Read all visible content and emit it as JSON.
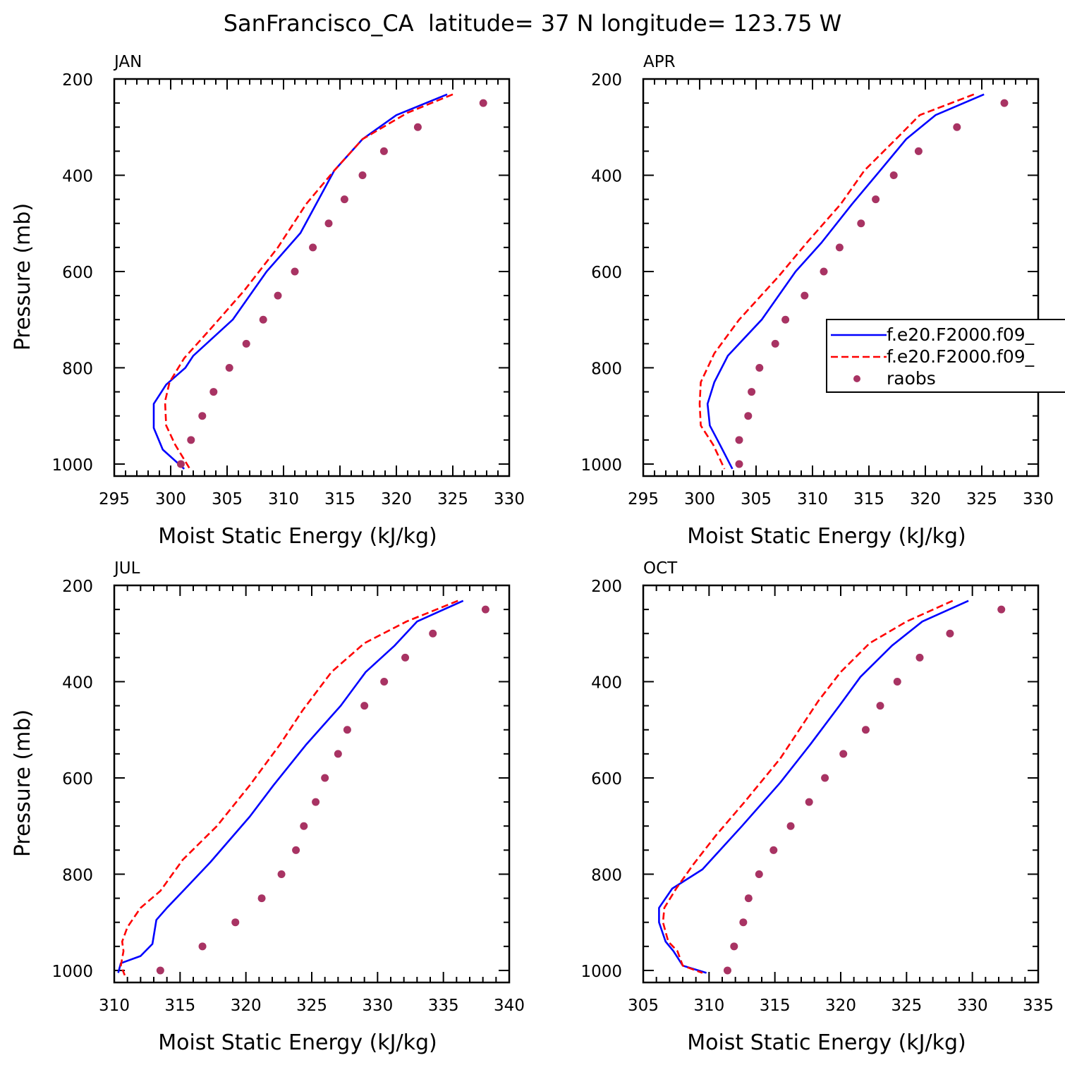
{
  "figure": {
    "title": "SanFrancisco_CA  latitude= 37 N longitude= 123.75 W"
  },
  "legend": {
    "entries": [
      {
        "label": "f.e20.F2000.f09_",
        "style": "solid",
        "color": "#0000ff"
      },
      {
        "label": "f.e20.F2000.f09_",
        "style": "dashed",
        "color": "#ff0000"
      },
      {
        "label": "raobs",
        "style": "dot",
        "color": "#a83363"
      }
    ]
  },
  "colors": {
    "series_solid": "#0000ff",
    "series_dashed": "#ff0000",
    "raobs": "#a83363",
    "frame": "#000000"
  },
  "chart_data": [
    {
      "type": "line",
      "panel_label": "JAN",
      "xlabel": "Moist Static Energy (kJ/kg)",
      "ylabel": "Pressure (mb)",
      "xlim": [
        295,
        330
      ],
      "ylim": [
        200,
        1025
      ],
      "y_inverted": true,
      "xticks": [
        295,
        300,
        305,
        310,
        315,
        320,
        325,
        330
      ],
      "yticks": [
        200,
        400,
        600,
        800,
        1000
      ],
      "series": [
        {
          "style": "solid",
          "x": [
            324.5,
            320,
            317,
            314.5,
            311.5,
            308.5,
            305.5,
            302,
            301.3,
            299.6,
            298.5,
            298.5,
            299.3,
            301.2
          ],
          "y": [
            232,
            275,
            325,
            390,
            520,
            600,
            700,
            775,
            800,
            835,
            875,
            925,
            970,
            1010
          ]
        },
        {
          "style": "dashed",
          "x": [
            325,
            321,
            317,
            314.5,
            312,
            309.5,
            306.5,
            303.5,
            301.2,
            299.9,
            299.5,
            299.6,
            300.4,
            301.7
          ],
          "y": [
            232,
            270,
            325,
            390,
            460,
            550,
            640,
            720,
            780,
            830,
            870,
            920,
            960,
            1010
          ]
        },
        {
          "style": "dot",
          "x": [
            327.7,
            321.9,
            318.9,
            317,
            315.4,
            314,
            312.6,
            311,
            309.5,
            308.2,
            306.7,
            305.2,
            303.8,
            302.8,
            301.8,
            300.9
          ],
          "y": [
            250,
            300,
            350,
            400,
            450,
            500,
            550,
            600,
            650,
            700,
            750,
            800,
            850,
            900,
            950,
            1000
          ]
        }
      ]
    },
    {
      "type": "line",
      "panel_label": "APR",
      "xlabel": "Moist Static Energy (kJ/kg)",
      "ylabel": "",
      "xlim": [
        295,
        330
      ],
      "ylim": [
        200,
        1025
      ],
      "y_inverted": true,
      "xticks": [
        295,
        300,
        305,
        310,
        315,
        320,
        325,
        330
      ],
      "yticks": [
        200,
        400,
        600,
        800,
        1000
      ],
      "series": [
        {
          "style": "solid",
          "x": [
            325.2,
            320.9,
            318.3,
            316,
            313.5,
            310.8,
            308.5,
            305.5,
            302.5,
            301.3,
            300.7,
            300.9,
            301.8,
            302.9
          ],
          "y": [
            232,
            275,
            325,
            390,
            460,
            540,
            600,
            700,
            775,
            830,
            875,
            920,
            960,
            1010
          ]
        },
        {
          "style": "dashed",
          "x": [
            324.3,
            319.5,
            317.6,
            314.6,
            312.5,
            309.5,
            307,
            303.5,
            301.3,
            300.1,
            300,
            300.1,
            301.2,
            302.2
          ],
          "y": [
            232,
            275,
            320,
            390,
            460,
            540,
            610,
            700,
            770,
            830,
            875,
            920,
            960,
            1010
          ]
        },
        {
          "style": "dot",
          "x": [
            327,
            322.8,
            319.4,
            317.2,
            315.6,
            314.3,
            312.4,
            311,
            309.3,
            307.6,
            306.7,
            305.3,
            304.6,
            304.3,
            303.5,
            303.5
          ],
          "y": [
            250,
            300,
            350,
            400,
            450,
            500,
            550,
            600,
            650,
            700,
            750,
            800,
            850,
            900,
            950,
            1000
          ]
        }
      ]
    },
    {
      "type": "line",
      "panel_label": "JUL",
      "xlabel": "Moist Static Energy (kJ/kg)",
      "ylabel": "Pressure (mb)",
      "xlim": [
        310,
        340
      ],
      "ylim": [
        200,
        1025
      ],
      "y_inverted": true,
      "xticks": [
        310,
        315,
        320,
        325,
        330,
        335,
        340
      ],
      "yticks": [
        200,
        400,
        600,
        800,
        1000
      ],
      "series": [
        {
          "style": "solid",
          "x": [
            336.5,
            333,
            331.3,
            329.1,
            327.2,
            324.6,
            322.1,
            320.3,
            317.3,
            315.4,
            314,
            313.2,
            312.9,
            312,
            310.5,
            310.3
          ],
          "y": [
            232,
            275,
            325,
            380,
            450,
            530,
            615,
            680,
            775,
            830,
            870,
            895,
            945,
            970,
            985,
            1005
          ]
        },
        {
          "style": "dashed",
          "x": [
            336.1,
            332.2,
            329,
            326.5,
            324.3,
            322.6,
            320.3,
            317.8,
            315.2,
            313.5,
            312,
            311,
            310.6,
            310.7,
            310.5,
            310.8
          ],
          "y": [
            232,
            275,
            320,
            380,
            460,
            530,
            615,
            700,
            770,
            835,
            870,
            910,
            940,
            960,
            990,
            1010
          ]
        },
        {
          "style": "dot",
          "x": [
            338.2,
            334.2,
            332.1,
            330.5,
            329,
            327.7,
            327,
            326,
            325.3,
            324.4,
            323.8,
            322.7,
            321.2,
            319.2,
            316.7,
            313.5
          ],
          "y": [
            250,
            300,
            350,
            400,
            450,
            500,
            550,
            600,
            650,
            700,
            750,
            800,
            850,
            900,
            950,
            1000
          ]
        }
      ]
    },
    {
      "type": "line",
      "panel_label": "OCT",
      "xlabel": "Moist Static Energy (kJ/kg)",
      "ylabel": "",
      "xlim": [
        305,
        335
      ],
      "ylim": [
        200,
        1025
      ],
      "y_inverted": true,
      "xticks": [
        305,
        310,
        315,
        320,
        325,
        330,
        335
      ],
      "yticks": [
        200,
        400,
        600,
        800,
        1000
      ],
      "series": [
        {
          "style": "solid",
          "x": [
            329.7,
            326.2,
            323.9,
            321.5,
            319.9,
            317.7,
            315.4,
            312.5,
            309.5,
            307.2,
            306.2,
            306.2,
            306.7,
            307.3,
            308,
            309.8
          ],
          "y": [
            232,
            275,
            325,
            390,
            450,
            530,
            610,
            700,
            790,
            830,
            870,
            900,
            940,
            960,
            990,
            1005
          ]
        },
        {
          "style": "dashed",
          "x": [
            328.5,
            325,
            322.2,
            320,
            318.3,
            315.4,
            312.7,
            310.5,
            308.8,
            307.5,
            306.6,
            306.5,
            306.9,
            307.6,
            308,
            309.5
          ],
          "y": [
            232,
            275,
            320,
            380,
            440,
            560,
            650,
            720,
            780,
            830,
            870,
            900,
            940,
            960,
            990,
            1005
          ]
        },
        {
          "style": "dot",
          "x": [
            332.2,
            328.3,
            326,
            324.3,
            323,
            321.9,
            320.2,
            318.8,
            317.6,
            316.2,
            314.9,
            313.8,
            313,
            312.6,
            311.9,
            311.4
          ],
          "y": [
            250,
            300,
            350,
            400,
            450,
            500,
            550,
            600,
            650,
            700,
            750,
            800,
            850,
            900,
            950,
            1000
          ]
        }
      ]
    }
  ]
}
